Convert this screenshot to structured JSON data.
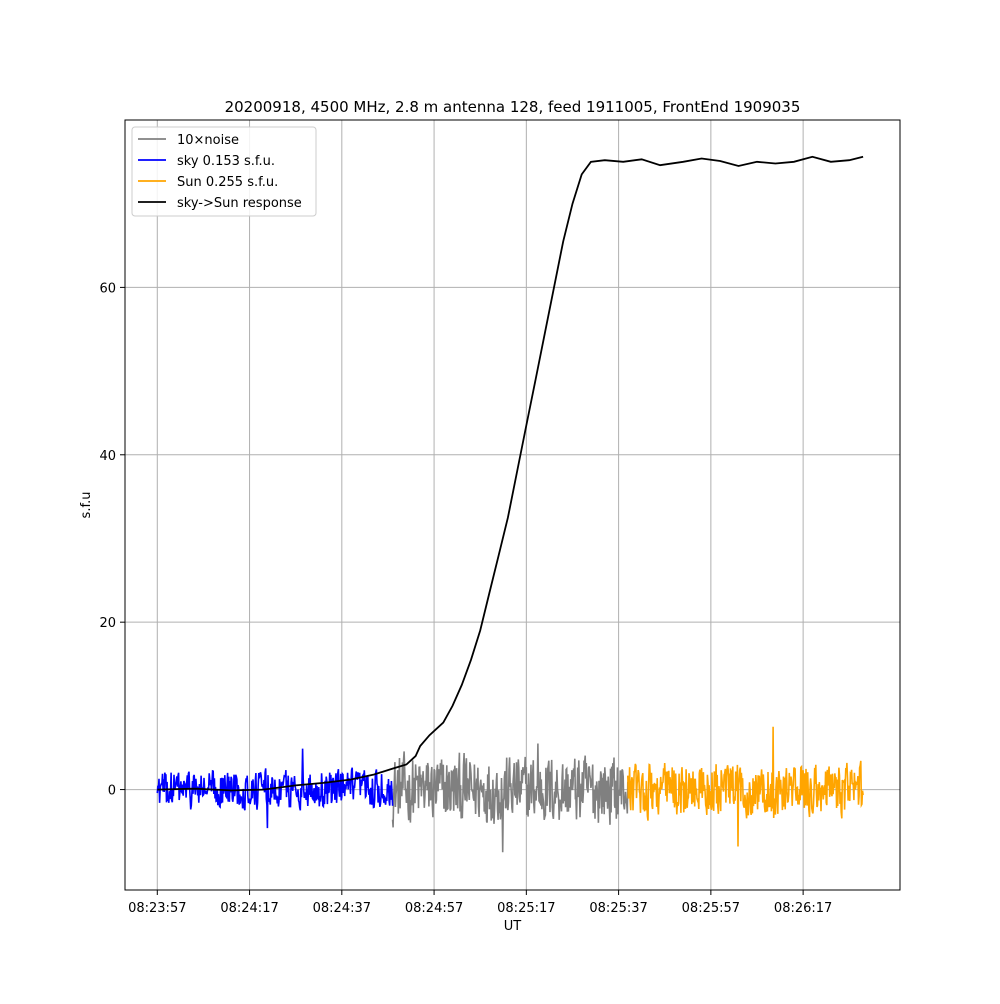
{
  "chart_data": {
    "type": "line",
    "title": "20200918, 4500 MHz, 2.8 m antenna 128, feed 1911005, FrontEnd 1909035",
    "xlabel": "UT",
    "ylabel": "s.f.u",
    "x_ticks": [
      "08:23:57",
      "08:24:17",
      "08:24:37",
      "08:24:57",
      "08:25:17",
      "08:25:37",
      "08:25:57",
      "08:26:17"
    ],
    "y_ticks": [
      0,
      20,
      40,
      60
    ],
    "xlim": [
      "08:23:50",
      "08:26:38"
    ],
    "ylim": [
      -12,
      80
    ],
    "grid": true,
    "legend_position": "top-left",
    "series": [
      {
        "name": "10×noise",
        "color": "#808080",
        "x_range": [
          "08:24:48",
          "08:25:39"
        ],
        "amplitude": 5.0,
        "extremes": {
          "max": 5.5,
          "min": -7.5
        }
      },
      {
        "name": "sky 0.153 s.f.u.",
        "color": "#0000ff",
        "x_range": [
          "08:23:57",
          "08:24:48"
        ],
        "amplitude": 2.8,
        "extremes": {
          "max": 4.9,
          "min": -4.6
        }
      },
      {
        "name": "Sun 0.255 s.f.u.",
        "color": "#ffa500",
        "x_range": [
          "08:25:39",
          "08:26:30"
        ],
        "amplitude": 4.0,
        "extremes": {
          "max": 7.5,
          "min": -6.8
        }
      },
      {
        "name": "sky->Sun response",
        "color": "#000000",
        "points": [
          [
            "08:23:57",
            0.0
          ],
          [
            "08:24:05",
            0.1
          ],
          [
            "08:24:13",
            -0.1
          ],
          [
            "08:24:20",
            0.0
          ],
          [
            "08:24:27",
            0.5
          ],
          [
            "08:24:33",
            0.8
          ],
          [
            "08:24:39",
            1.2
          ],
          [
            "08:24:44",
            1.8
          ],
          [
            "08:24:48",
            2.5
          ],
          [
            "08:24:51",
            3.0
          ],
          [
            "08:24:53",
            4.0
          ],
          [
            "08:24:54",
            5.2
          ],
          [
            "08:24:56",
            6.5
          ],
          [
            "08:24:59",
            8.0
          ],
          [
            "08:25:01",
            10.0
          ],
          [
            "08:25:03",
            12.5
          ],
          [
            "08:25:05",
            15.5
          ],
          [
            "08:25:07",
            19.0
          ],
          [
            "08:25:09",
            23.5
          ],
          [
            "08:25:11",
            28.0
          ],
          [
            "08:25:13",
            32.5
          ],
          [
            "08:25:15",
            38.0
          ],
          [
            "08:25:17",
            43.5
          ],
          [
            "08:25:19",
            49.0
          ],
          [
            "08:25:21",
            54.5
          ],
          [
            "08:25:23",
            60.0
          ],
          [
            "08:25:25",
            65.5
          ],
          [
            "08:25:27",
            70.0
          ],
          [
            "08:25:29",
            73.5
          ],
          [
            "08:25:31",
            75.0
          ],
          [
            "08:25:34",
            75.2
          ],
          [
            "08:25:38",
            75.0
          ],
          [
            "08:25:42",
            75.3
          ],
          [
            "08:25:46",
            74.6
          ],
          [
            "08:25:51",
            75.0
          ],
          [
            "08:25:55",
            75.4
          ],
          [
            "08:25:59",
            75.1
          ],
          [
            "08:26:03",
            74.5
          ],
          [
            "08:26:07",
            75.0
          ],
          [
            "08:26:11",
            74.8
          ],
          [
            "08:26:15",
            75.0
          ],
          [
            "08:26:19",
            75.6
          ],
          [
            "08:26:23",
            75.0
          ],
          [
            "08:26:27",
            75.2
          ],
          [
            "08:26:30",
            75.6
          ]
        ]
      }
    ]
  }
}
